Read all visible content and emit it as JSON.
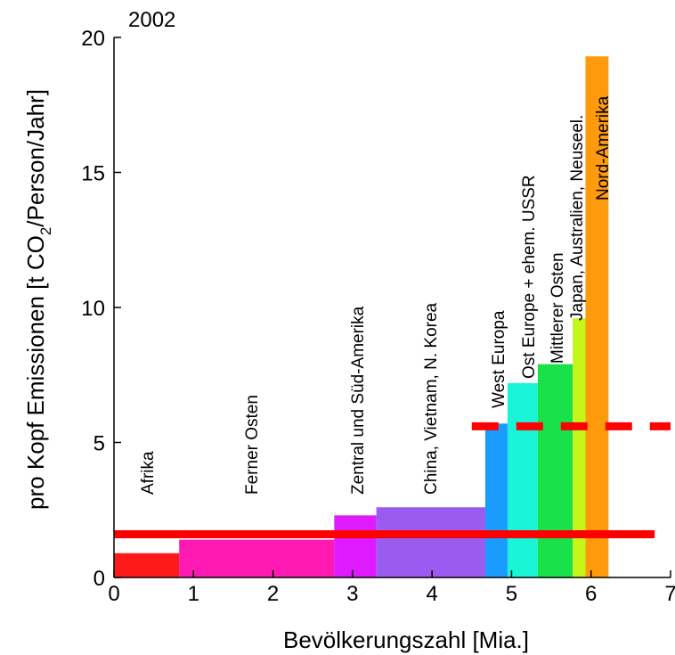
{
  "chart_data": {
    "type": "bar",
    "title": "2002",
    "xlabel": "Bevölkerungszahl [Mia.]",
    "ylabel": {
      "before": "pro Kopf Emissionen [t CO",
      "subscript": "2",
      "after": "/Person/Jahr]"
    },
    "xlim": [
      0,
      7
    ],
    "ylim": [
      0,
      20
    ],
    "xticks": [
      "0",
      "1",
      "2",
      "3",
      "4",
      "5",
      "6",
      "7"
    ],
    "yticks": [
      "0",
      "5",
      "10",
      "15",
      "20"
    ],
    "regions": [
      {
        "label": "Afrika",
        "x0": 0.0,
        "x1": 0.82,
        "value": 0.9,
        "color": "#ff1a1a"
      },
      {
        "label": "Ferner Osten",
        "x0": 0.82,
        "x1": 2.77,
        "value": 1.4,
        "color": "#ff1ab3"
      },
      {
        "label": "Zentral und Süd-Amerika",
        "x0": 2.77,
        "x1": 3.3,
        "value": 2.3,
        "color": "#e01aff"
      },
      {
        "label": "China, Vietnam, N. Korea",
        "x0": 3.3,
        "x1": 4.67,
        "value": 2.6,
        "color": "#9a5cf0"
      },
      {
        "label": "West Europa",
        "x0": 4.67,
        "x1": 4.95,
        "value": 5.7,
        "color": "#1a9cff"
      },
      {
        "label": "Ost Europe + ehem. USSR",
        "x0": 4.95,
        "x1": 5.33,
        "value": 7.2,
        "color": "#1af5d8"
      },
      {
        "label": "Mittlerer Osten",
        "x0": 5.33,
        "x1": 5.77,
        "value": 7.9,
        "color": "#1ae04a"
      },
      {
        "label": "Japan, Australien, Neuseel.",
        "x0": 5.77,
        "x1": 5.93,
        "value": 9.6,
        "color": "#c6f51a"
      },
      {
        "label": "Nord-Amerika",
        "x0": 5.93,
        "x1": 6.22,
        "value": 19.3,
        "color": "#ff9a0d"
      }
    ],
    "reference_lines": [
      {
        "y": 1.6,
        "x0": 0.0,
        "x1": 6.8,
        "style": "solid",
        "color": "#ff0000"
      },
      {
        "y": 5.6,
        "x0": 4.5,
        "x1": 7.0,
        "style": "dashed",
        "color": "#ff0000"
      }
    ],
    "grid": false
  }
}
